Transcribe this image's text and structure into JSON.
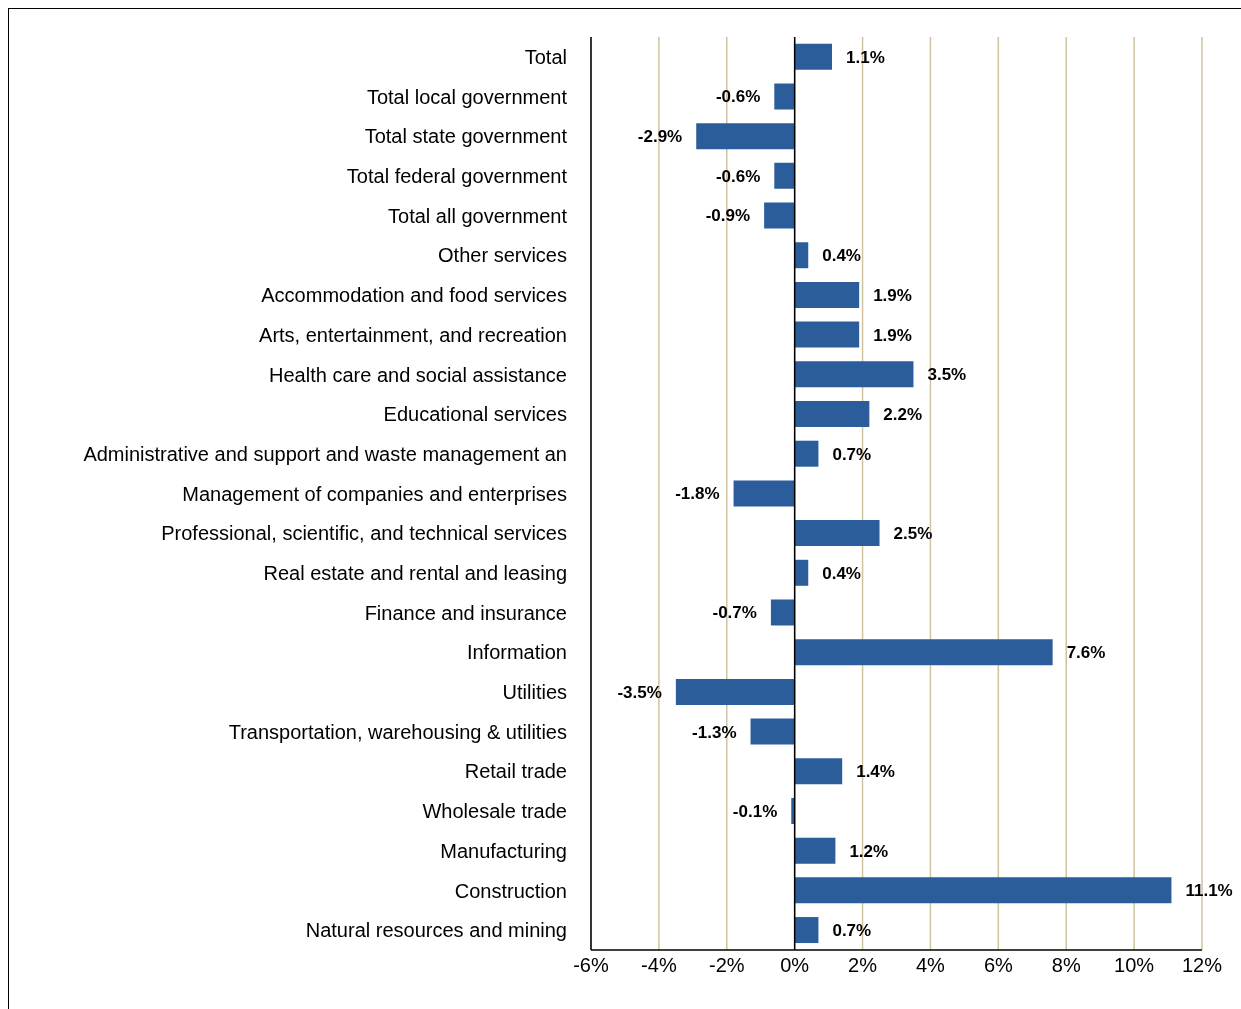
{
  "chart_data": {
    "type": "bar",
    "orientation": "horizontal",
    "categories": [
      "Total",
      "Total local government",
      "Total state government",
      "Total federal government",
      "Total all government",
      "Other services",
      "Accommodation and food services",
      "Arts, entertainment, and recreation",
      "Health care and social assistance",
      "Educational services",
      "Administrative and support and waste management an",
      "Management of companies and enterprises",
      "Professional, scientific, and technical services",
      "Real estate and rental and leasing",
      "Finance and insurance",
      "Information",
      "Utilities",
      "Transportation, warehousing & utilities",
      "Retail trade",
      "Wholesale trade",
      "Manufacturing",
      "Construction",
      "Natural resources and mining"
    ],
    "values": [
      1.1,
      -0.6,
      -2.9,
      -0.6,
      -0.9,
      0.4,
      1.9,
      1.9,
      3.5,
      2.2,
      0.7,
      -1.8,
      2.5,
      0.4,
      -0.7,
      7.6,
      -3.5,
      -1.3,
      1.4,
      -0.1,
      1.2,
      11.1,
      0.7
    ],
    "value_labels": [
      "1.1%",
      "-0.6%",
      "-2.9%",
      "-0.6%",
      "-0.9%",
      "0.4%",
      "1.9%",
      "1.9%",
      "3.5%",
      "2.2%",
      "0.7%",
      "-1.8%",
      "2.5%",
      "0.4%",
      "-0.7%",
      "7.6%",
      "-3.5%",
      "-1.3%",
      "1.4%",
      "-0.1%",
      "1.2%",
      "11.1%",
      "0.7%"
    ],
    "color": "#2b5d9b",
    "xlim": [
      -6,
      12
    ],
    "xticks": [
      {
        "value": -6,
        "label": "-6%"
      },
      {
        "value": -4,
        "label": "-4%"
      },
      {
        "value": -2,
        "label": "-2%"
      },
      {
        "value": 0,
        "label": "0%"
      },
      {
        "value": 2,
        "label": "2%"
      },
      {
        "value": 4,
        "label": "4%"
      },
      {
        "value": 6,
        "label": "6%"
      },
      {
        "value": 8,
        "label": "8%"
      },
      {
        "value": 10,
        "label": "10%"
      },
      {
        "value": 12,
        "label": "12%"
      }
    ],
    "ref_lines": [
      {
        "axis": "x",
        "value": 0,
        "color": "#000000"
      }
    ],
    "grid": "x",
    "legend": false
  }
}
